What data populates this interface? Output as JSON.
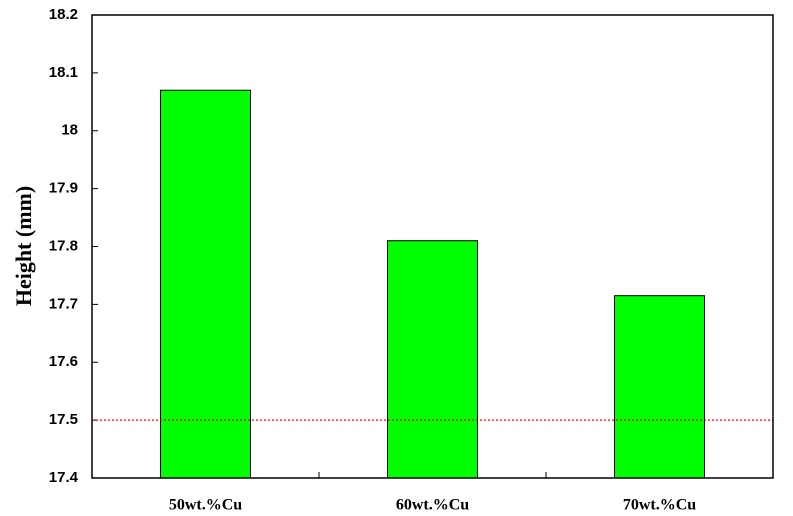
{
  "chart_data": {
    "type": "bar",
    "y_label": "Height (mm)",
    "categories": [
      "50wt.%Cu",
      "60wt.%Cu",
      "70wt.%Cu"
    ],
    "values": [
      18.07,
      17.81,
      17.715
    ],
    "color": "#00ff00",
    "ylim": [
      17.4,
      18.2
    ],
    "yticks": [
      17.4,
      17.5,
      17.6,
      17.7,
      17.8,
      17.9,
      18,
      18.1,
      18.2
    ],
    "reference_line": {
      "value": 17.5,
      "color": "#ff0000"
    }
  }
}
